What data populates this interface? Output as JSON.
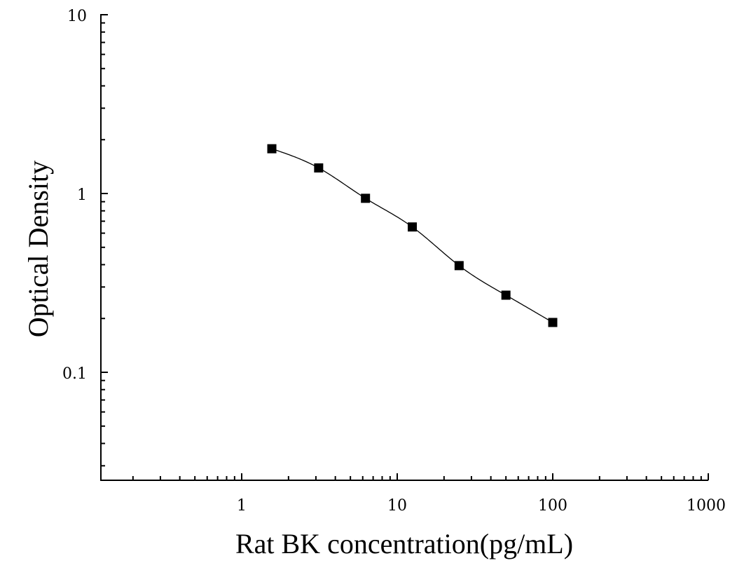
{
  "chart_data": {
    "type": "scatter",
    "xlabel": "Rat BK concentration(pg/mL)",
    "ylabel": "Optical Density",
    "x_scale": "log",
    "y_scale": "log",
    "xlim": [
      0.125,
      1000
    ],
    "ylim": [
      0.025,
      10
    ],
    "x_tick_labels": [
      "1",
      "10",
      "100",
      "1000"
    ],
    "y_tick_labels": [
      "10",
      "1",
      "0.1"
    ],
    "grid": false,
    "legend": "none",
    "series": [
      {
        "points": [
          {
            "x": 1.5625,
            "y": 1.78
          },
          {
            "x": 3.125,
            "y": 1.39
          },
          {
            "x": 6.25,
            "y": 0.94
          },
          {
            "x": 12.5,
            "y": 0.65
          },
          {
            "x": 25,
            "y": 0.395
          },
          {
            "x": 50,
            "y": 0.27
          },
          {
            "x": 100,
            "y": 0.19
          }
        ],
        "marker": "square",
        "color": "#000000",
        "fit": "four-parameter logistic curve"
      }
    ]
  }
}
